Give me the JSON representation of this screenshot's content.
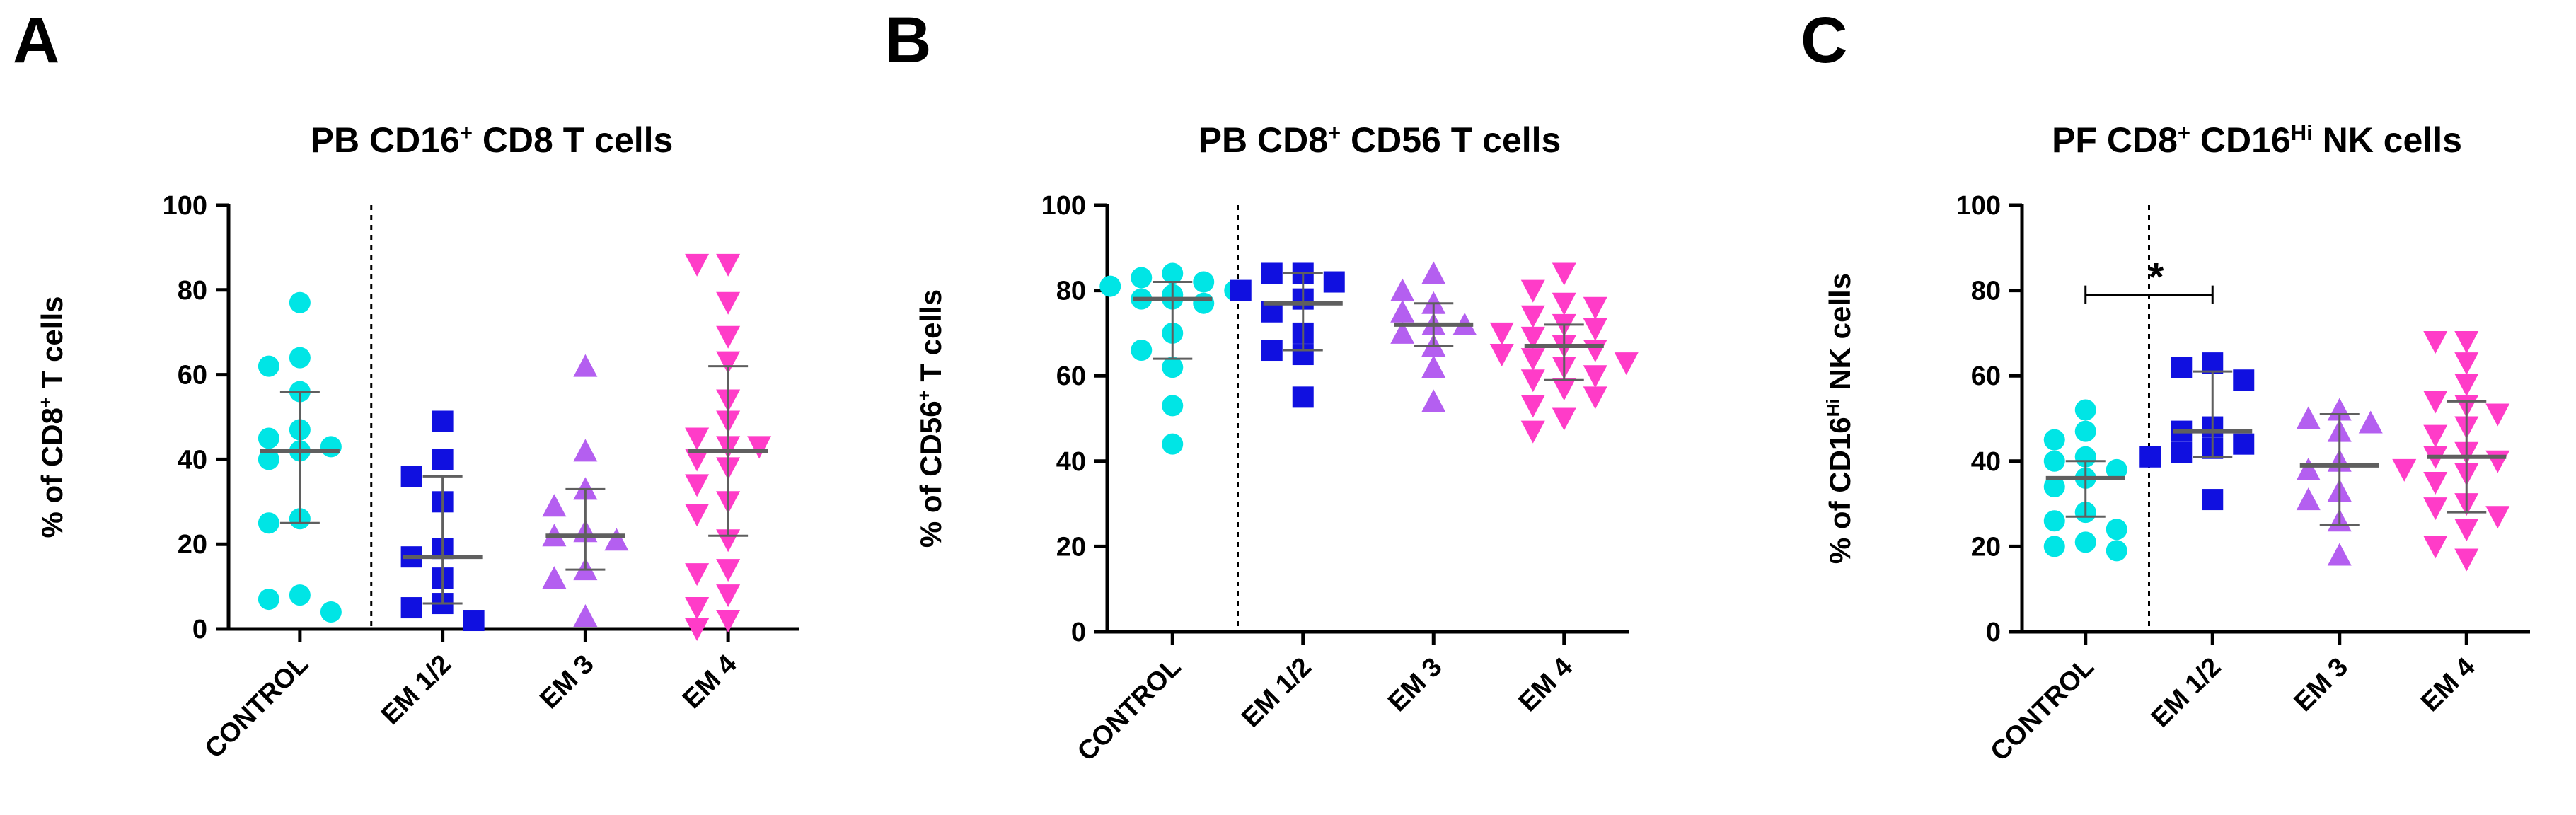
{
  "chart_data": [
    {
      "type": "scatter",
      "panel": "A",
      "title": "PB CD16+ CD8 T cells",
      "title_parts": [
        {
          "t": "PB CD16"
        },
        {
          "t": "+",
          "sup": true
        },
        {
          "t": " CD8 T cells"
        }
      ],
      "ylabel": "% of CD8+ T cells",
      "ylabel_parts": [
        {
          "t": "% of CD8"
        },
        {
          "t": "+",
          "sup": true
        },
        {
          "t": " T cells"
        }
      ],
      "ylim": [
        0,
        100
      ],
      "yticks": [
        0,
        20,
        40,
        60,
        80,
        100
      ],
      "categories": [
        "CONTROL",
        "EM 1/2",
        "EM 3",
        "EM 4"
      ],
      "divider_after": 0,
      "series": [
        {
          "color": "#00e5e5",
          "marker": "circle",
          "mean": 42,
          "err": [
            25,
            56
          ],
          "values": [
            77,
            64,
            62,
            56,
            47,
            45,
            43,
            42,
            40,
            26,
            25,
            8,
            7,
            4
          ]
        },
        {
          "color": "#1010e0",
          "marker": "square",
          "mean": 17,
          "err": [
            6,
            36
          ],
          "values": [
            49,
            40,
            36,
            30,
            19,
            17,
            12,
            6,
            5,
            2
          ]
        },
        {
          "color": "#b45ff0",
          "marker": "triangle-up",
          "mean": 22,
          "err": [
            14,
            33
          ],
          "values": [
            62,
            42,
            33,
            29,
            23,
            22,
            21,
            14,
            12,
            3
          ]
        },
        {
          "color": "#ff3cc8",
          "marker": "triangle-down",
          "mean": 42,
          "err": [
            22,
            62
          ],
          "values": [
            86,
            86,
            77,
            69,
            63,
            54,
            49,
            45,
            43,
            43,
            40,
            38,
            34,
            30,
            27,
            21,
            14,
            13,
            8,
            5,
            2,
            0
          ]
        }
      ]
    },
    {
      "type": "scatter",
      "panel": "B",
      "title": "PB CD8+ CD56 T cells",
      "title_parts": [
        {
          "t": "PB CD8"
        },
        {
          "t": "+",
          "sup": true
        },
        {
          "t": " CD56 T cells"
        }
      ],
      "ylabel": "% of CD56+ T cells",
      "ylabel_parts": [
        {
          "t": "% of CD56"
        },
        {
          "t": "+",
          "sup": true
        },
        {
          "t": " T cells"
        }
      ],
      "ylim": [
        0,
        100
      ],
      "yticks": [
        0,
        20,
        40,
        60,
        80,
        100
      ],
      "categories": [
        "CONTROL",
        "EM 1/2",
        "EM 3",
        "EM 4"
      ],
      "divider_after": 0,
      "series": [
        {
          "color": "#00e5e5",
          "marker": "circle",
          "mean": 78,
          "err": [
            64,
            82
          ],
          "values": [
            84,
            83,
            82,
            81,
            80,
            79,
            78,
            78,
            77,
            70,
            66,
            62,
            53,
            44
          ]
        },
        {
          "color": "#1010e0",
          "marker": "square",
          "mean": 77,
          "err": [
            66,
            84
          ],
          "values": [
            84,
            84,
            82,
            80,
            78,
            75,
            70,
            66,
            65,
            55
          ]
        },
        {
          "color": "#b45ff0",
          "marker": "triangle-up",
          "mean": 72,
          "err": [
            67,
            77
          ],
          "values": [
            84,
            80,
            77,
            75,
            72,
            72,
            70,
            67,
            62,
            54
          ]
        },
        {
          "color": "#ff3cc8",
          "marker": "triangle-down",
          "mean": 67,
          "err": [
            59,
            72
          ],
          "values": [
            84,
            80,
            77,
            76,
            74,
            72,
            71,
            70,
            69,
            67,
            66,
            65,
            64,
            63,
            62,
            60,
            59,
            57,
            55,
            53,
            50,
            47
          ]
        }
      ]
    },
    {
      "type": "scatter",
      "panel": "C",
      "title": "PF CD8+ CD16Hi NK cells",
      "title_parts": [
        {
          "t": "PF CD8"
        },
        {
          "t": "+",
          "sup": true
        },
        {
          "t": " CD16"
        },
        {
          "t": "Hi",
          "sup": true
        },
        {
          "t": " NK cells"
        }
      ],
      "ylabel": "% of CD16Hi NK cells",
      "ylabel_parts": [
        {
          "t": "% of CD16"
        },
        {
          "t": "Hi",
          "sup": true
        },
        {
          "t": " NK cells"
        }
      ],
      "ylim": [
        0,
        100
      ],
      "yticks": [
        0,
        20,
        40,
        60,
        80,
        100
      ],
      "categories": [
        "CONTROL",
        "EM 1/2",
        "EM 3",
        "EM 4"
      ],
      "divider_after": 0,
      "significance": {
        "from": 0,
        "to": 1,
        "y": 79,
        "label": "*"
      },
      "series": [
        {
          "color": "#00e5e5",
          "marker": "circle",
          "mean": 36,
          "err": [
            27,
            40
          ],
          "values": [
            52,
            47,
            45,
            41,
            40,
            38,
            36,
            34,
            28,
            26,
            24,
            21,
            20,
            19
          ]
        },
        {
          "color": "#1010e0",
          "marker": "square",
          "mean": 47,
          "err": [
            41,
            61
          ],
          "values": [
            63,
            62,
            59,
            48,
            47,
            44,
            43,
            42,
            41,
            31
          ]
        },
        {
          "color": "#b45ff0",
          "marker": "triangle-up",
          "mean": 39,
          "err": [
            25,
            51
          ],
          "values": [
            52,
            50,
            49,
            47,
            40,
            38,
            33,
            31,
            26,
            18
          ]
        },
        {
          "color": "#ff3cc8",
          "marker": "triangle-down",
          "mean": 41,
          "err": [
            28,
            54
          ],
          "values": [
            68,
            68,
            63,
            58,
            54,
            53,
            51,
            48,
            46,
            42,
            41,
            40,
            38,
            37,
            35,
            30,
            29,
            27,
            24,
            20,
            17
          ]
        }
      ]
    }
  ]
}
